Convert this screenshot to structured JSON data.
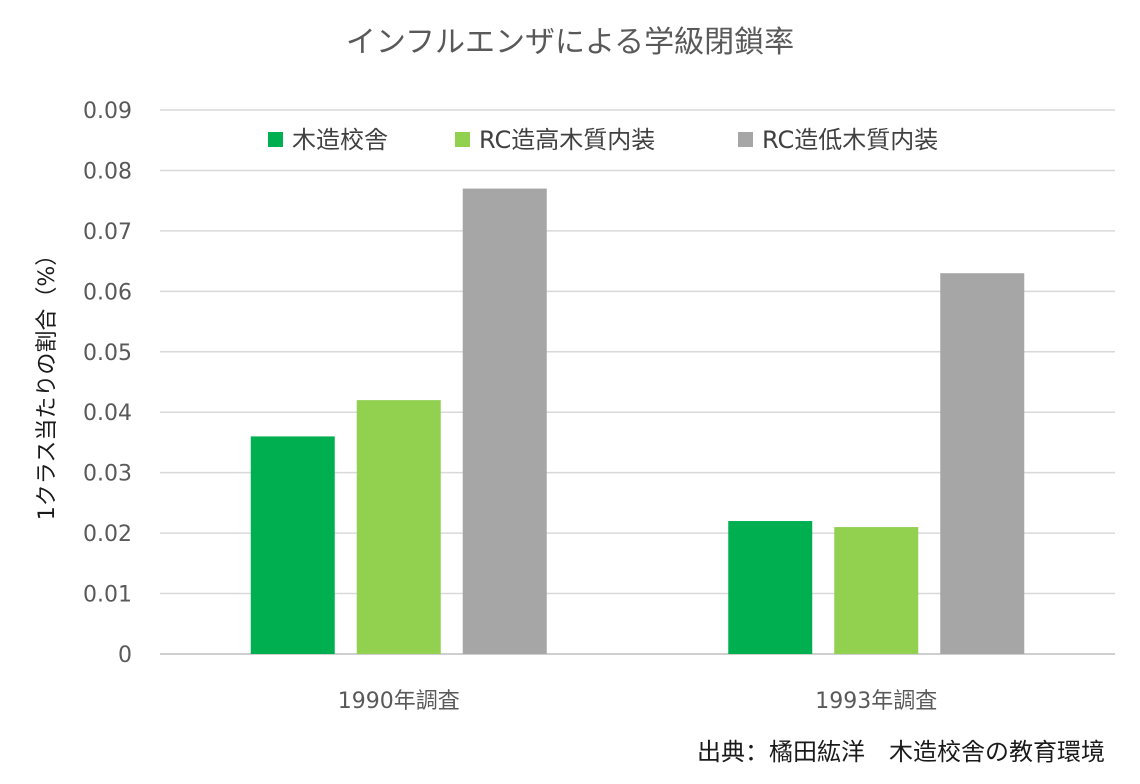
{
  "chart_data": {
    "type": "bar",
    "title": "インフルエンザによる学級閉鎖率",
    "ylabel": "1クラス当たりの割合（%）",
    "xlabel": "",
    "categories": [
      "1990年調査",
      "1993年調査"
    ],
    "series": [
      {
        "name": "木造校舎",
        "color": "#00b050",
        "values": [
          0.036,
          0.022
        ]
      },
      {
        "name": "RC造高木質内装",
        "color": "#92d050",
        "values": [
          0.042,
          0.021
        ]
      },
      {
        "name": "RC造低木質内装",
        "color": "#a6a6a6",
        "values": [
          0.077,
          0.063
        ]
      }
    ],
    "ylim": [
      0,
      0.09
    ],
    "yticks": [
      0,
      0.01,
      0.02,
      0.03,
      0.04,
      0.05,
      0.06,
      0.07,
      0.08,
      0.09
    ],
    "ytick_labels": [
      "0",
      "0.01",
      "0.02",
      "0.03",
      "0.04",
      "0.05",
      "0.06",
      "0.07",
      "0.08",
      "0.09"
    ],
    "grid": true,
    "legend_position": "top"
  },
  "source_note": "出典：橘田紘洋　木造校舎の教育環境"
}
